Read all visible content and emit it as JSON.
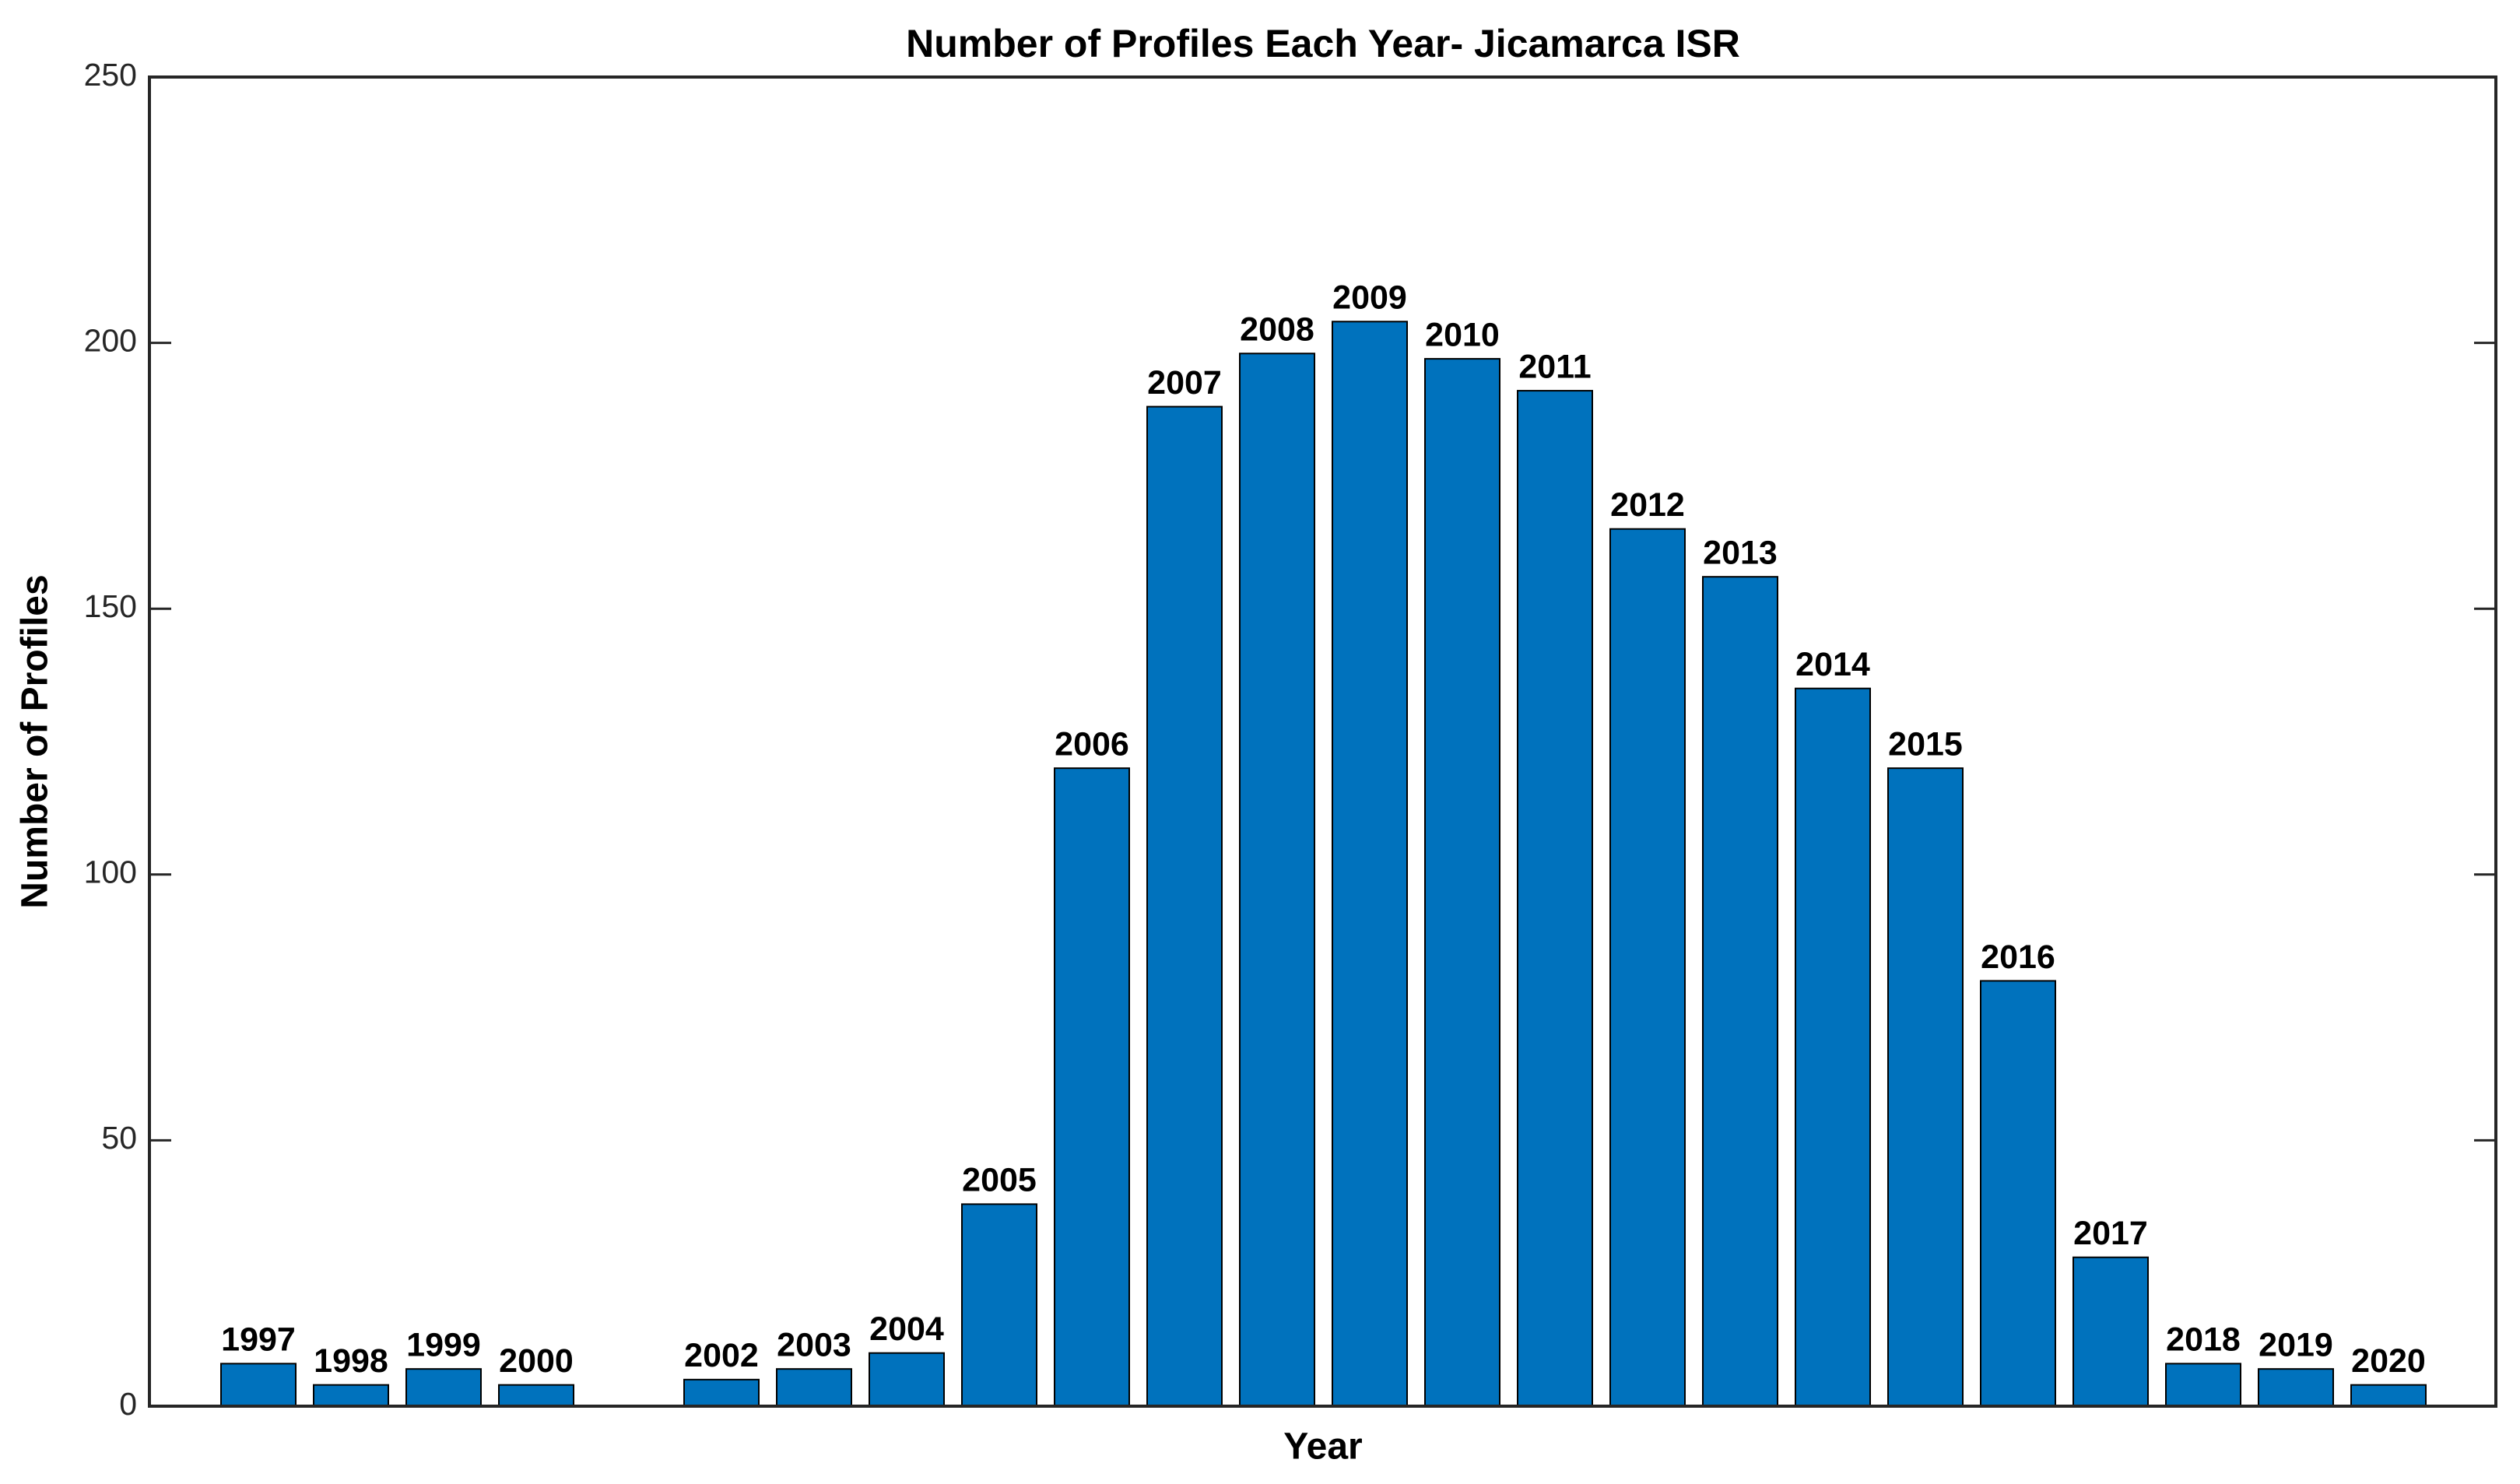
{
  "chart_data": {
    "type": "bar",
    "title": "Number of Profiles Each Year- Jicamarca ISR",
    "x_label": "Year",
    "y_label": "Number of Profiles",
    "categories": [
      "1997",
      "1998",
      "1999",
      "2000",
      null,
      "2002",
      "2003",
      "2004",
      "2005",
      "2006",
      "2007",
      "2008",
      "2009",
      "2010",
      "2011",
      "2012",
      "2013",
      "2014",
      "2015",
      "2016",
      "2017",
      "2018",
      "2019",
      "2020"
    ],
    "values": [
      8,
      4,
      7,
      4,
      null,
      5,
      7,
      10,
      38,
      120,
      188,
      198,
      204,
      197,
      191,
      165,
      156,
      135,
      120,
      80,
      28,
      8,
      7,
      4
    ],
    "color": "#0072bd",
    "ylim": [
      0,
      250
    ],
    "yticks": [
      0,
      50,
      100,
      150,
      200,
      250
    ],
    "grid": false
  }
}
